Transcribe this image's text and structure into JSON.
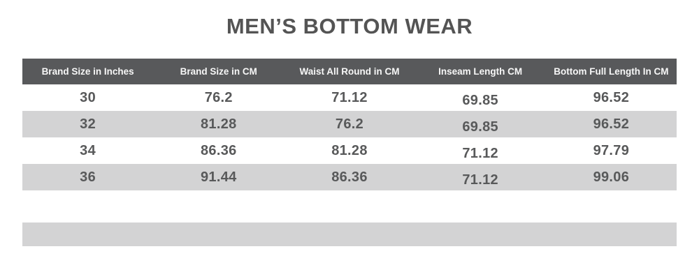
{
  "page": {
    "title": "MEN’S BOTTOM WEAR"
  },
  "chart_data": {
    "type": "table",
    "title": "MEN’S BOTTOM WEAR",
    "columns": [
      "Brand Size in Inches",
      "Brand Size in CM",
      "Waist All Round in CM",
      "Inseam Length CM",
      "Bottom Full Length In CM"
    ],
    "rows": [
      [
        "30",
        "76.2",
        "71.12",
        "69.85",
        "96.52"
      ],
      [
        "32",
        "81.28",
        "76.2",
        "69.85",
        "96.52"
      ],
      [
        "34",
        "86.36",
        "81.28",
        "71.12",
        "97.79"
      ],
      [
        "36",
        "91.44",
        "86.36",
        "71.12",
        "99.06"
      ]
    ],
    "layout_hints": {
      "zebra_striped_rows": [
        2,
        4
      ],
      "empty_decorative_bar_below_table": true
    }
  },
  "colors": {
    "page-bg": "#ffffff",
    "title": "#545454",
    "header-bg": "#58595b",
    "header-text": "#f7f7f7",
    "stripe": "#d3d3d4",
    "text": "#58595a"
  }
}
